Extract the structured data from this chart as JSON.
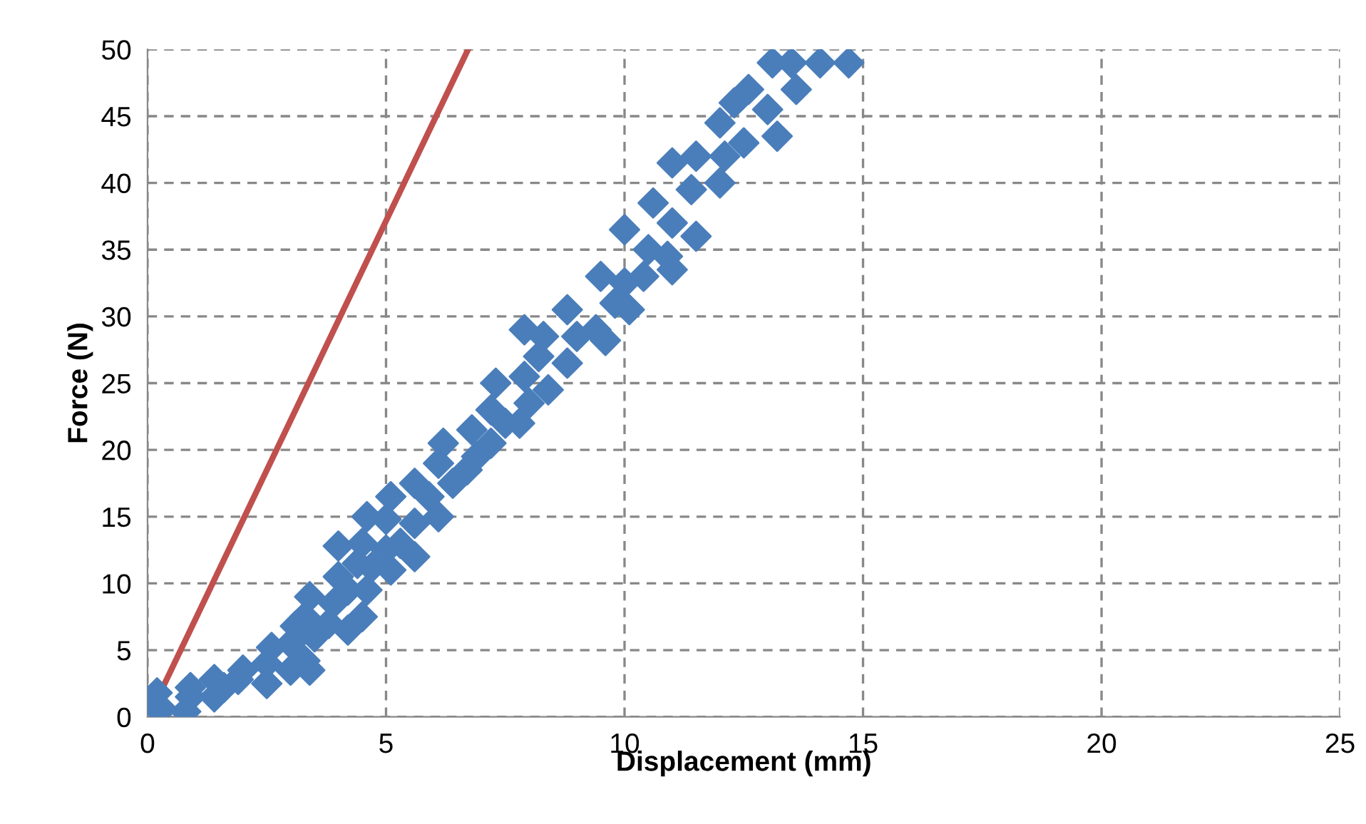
{
  "chart_data": {
    "type": "scatter",
    "xlabel": "Displacement (mm)",
    "ylabel": "Force (N)",
    "xlim": [
      0,
      25
    ],
    "ylim": [
      0,
      50
    ],
    "xticks": [
      0,
      5,
      10,
      15,
      20,
      25
    ],
    "yticks": [
      0,
      5,
      10,
      15,
      20,
      25,
      30,
      35,
      40,
      45,
      50
    ],
    "grid": true,
    "marker": "diamond",
    "series": [
      {
        "color": "#4a7ebb",
        "x": [
          0.1,
          0.2,
          0.3,
          0.8,
          0.9,
          0.9,
          1.4,
          1.4,
          1.6,
          1.9,
          2.0,
          2.5,
          2.5,
          2.6,
          3.0,
          3.0,
          3.1,
          3.3,
          3.3,
          3.4,
          3.4,
          3.5,
          3.8,
          3.9,
          4.0,
          4.0,
          4.2,
          4.2,
          4.4,
          4.5,
          4.5,
          4.6,
          4.6,
          4.7,
          5.0,
          5.0,
          5.1,
          5.1,
          5.3,
          5.6,
          5.6,
          5.6,
          5.9,
          6.1,
          6.1,
          6.2,
          6.4,
          6.7,
          6.8,
          6.9,
          7.2,
          7.2,
          7.3,
          7.5,
          7.8,
          7.9,
          7.9,
          8.0,
          8.2,
          8.3,
          8.4,
          8.8,
          8.8,
          9.0,
          9.4,
          9.5,
          9.6,
          9.8,
          10.0,
          10.0,
          10.1,
          10.4,
          10.5,
          10.6,
          10.9,
          11.0,
          11.0,
          11.0,
          11.4,
          11.5,
          11.5,
          12.0,
          12.0,
          12.1,
          12.3,
          12.5,
          12.6,
          13.0,
          13.1,
          13.2,
          13.5,
          13.6,
          14.1,
          14.7
        ],
        "values": [
          1,
          1.8,
          0.6,
          0.4,
          1.5,
          2.2,
          1.5,
          2.8,
          2.2,
          2.8,
          3.5,
          2.5,
          4.0,
          5.2,
          3.5,
          5.5,
          6.8,
          4.2,
          7.5,
          3.5,
          9.0,
          6.0,
          7.0,
          8.5,
          10.5,
          12.8,
          6.5,
          9.5,
          11.5,
          13.0,
          7.5,
          15.0,
          9.5,
          11.2,
          12.5,
          14.8,
          16.5,
          11.0,
          13.0,
          14.5,
          17.5,
          12.0,
          16.5,
          15.0,
          19.0,
          20.5,
          17.5,
          18.5,
          21.5,
          19.5,
          20.5,
          23.0,
          25.0,
          22.0,
          22.0,
          25.5,
          29.0,
          23.5,
          27.0,
          28.5,
          24.5,
          26.5,
          30.5,
          28.5,
          29.0,
          33.0,
          28.2,
          31.0,
          32.5,
          36.5,
          30.5,
          33.0,
          35.0,
          38.5,
          34.5,
          37.0,
          41.5,
          33.5,
          39.5,
          36.0,
          42.0,
          40.0,
          44.5,
          42.0,
          46.0,
          43.0,
          47.0,
          45.5,
          49.0,
          43.5,
          49.0,
          47.0,
          49.0,
          49.0
        ]
      },
      {
        "type": "line",
        "color": "#c0504d",
        "marker": "none",
        "x": [
          0.36,
          6.72
        ],
        "values": [
          2.5,
          50
        ]
      }
    ]
  }
}
